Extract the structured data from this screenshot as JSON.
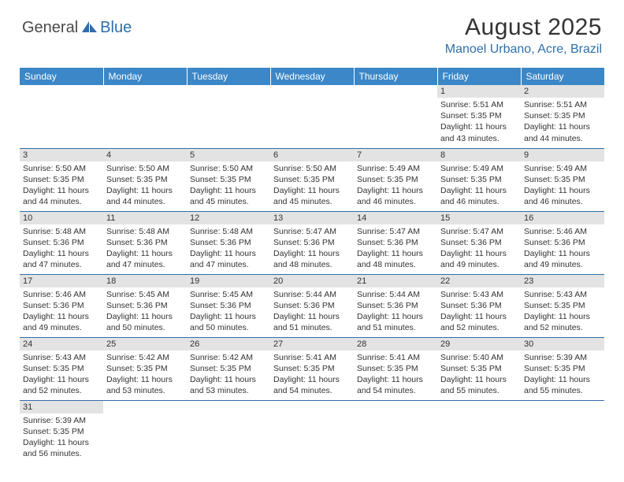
{
  "logo": {
    "text1": "General",
    "text2": "Blue"
  },
  "title": "August 2025",
  "location": "Manoel Urbano, Acre, Brazil",
  "colors": {
    "header_bg": "#3b87c8",
    "header_text": "#ffffff",
    "daynum_bg": "#e3e3e3",
    "border": "#2f6fa8",
    "location": "#2f6fa8",
    "body_text": "#333333"
  },
  "weekdays": [
    "Sunday",
    "Monday",
    "Tuesday",
    "Wednesday",
    "Thursday",
    "Friday",
    "Saturday"
  ],
  "leading_blanks": 5,
  "days": [
    {
      "n": 1,
      "sunrise": "5:51 AM",
      "sunset": "5:35 PM",
      "daylight": "11 hours and 43 minutes."
    },
    {
      "n": 2,
      "sunrise": "5:51 AM",
      "sunset": "5:35 PM",
      "daylight": "11 hours and 44 minutes."
    },
    {
      "n": 3,
      "sunrise": "5:50 AM",
      "sunset": "5:35 PM",
      "daylight": "11 hours and 44 minutes."
    },
    {
      "n": 4,
      "sunrise": "5:50 AM",
      "sunset": "5:35 PM",
      "daylight": "11 hours and 44 minutes."
    },
    {
      "n": 5,
      "sunrise": "5:50 AM",
      "sunset": "5:35 PM",
      "daylight": "11 hours and 45 minutes."
    },
    {
      "n": 6,
      "sunrise": "5:50 AM",
      "sunset": "5:35 PM",
      "daylight": "11 hours and 45 minutes."
    },
    {
      "n": 7,
      "sunrise": "5:49 AM",
      "sunset": "5:35 PM",
      "daylight": "11 hours and 46 minutes."
    },
    {
      "n": 8,
      "sunrise": "5:49 AM",
      "sunset": "5:35 PM",
      "daylight": "11 hours and 46 minutes."
    },
    {
      "n": 9,
      "sunrise": "5:49 AM",
      "sunset": "5:35 PM",
      "daylight": "11 hours and 46 minutes."
    },
    {
      "n": 10,
      "sunrise": "5:48 AM",
      "sunset": "5:36 PM",
      "daylight": "11 hours and 47 minutes."
    },
    {
      "n": 11,
      "sunrise": "5:48 AM",
      "sunset": "5:36 PM",
      "daylight": "11 hours and 47 minutes."
    },
    {
      "n": 12,
      "sunrise": "5:48 AM",
      "sunset": "5:36 PM",
      "daylight": "11 hours and 47 minutes."
    },
    {
      "n": 13,
      "sunrise": "5:47 AM",
      "sunset": "5:36 PM",
      "daylight": "11 hours and 48 minutes."
    },
    {
      "n": 14,
      "sunrise": "5:47 AM",
      "sunset": "5:36 PM",
      "daylight": "11 hours and 48 minutes."
    },
    {
      "n": 15,
      "sunrise": "5:47 AM",
      "sunset": "5:36 PM",
      "daylight": "11 hours and 49 minutes."
    },
    {
      "n": 16,
      "sunrise": "5:46 AM",
      "sunset": "5:36 PM",
      "daylight": "11 hours and 49 minutes."
    },
    {
      "n": 17,
      "sunrise": "5:46 AM",
      "sunset": "5:36 PM",
      "daylight": "11 hours and 49 minutes."
    },
    {
      "n": 18,
      "sunrise": "5:45 AM",
      "sunset": "5:36 PM",
      "daylight": "11 hours and 50 minutes."
    },
    {
      "n": 19,
      "sunrise": "5:45 AM",
      "sunset": "5:36 PM",
      "daylight": "11 hours and 50 minutes."
    },
    {
      "n": 20,
      "sunrise": "5:44 AM",
      "sunset": "5:36 PM",
      "daylight": "11 hours and 51 minutes."
    },
    {
      "n": 21,
      "sunrise": "5:44 AM",
      "sunset": "5:36 PM",
      "daylight": "11 hours and 51 minutes."
    },
    {
      "n": 22,
      "sunrise": "5:43 AM",
      "sunset": "5:36 PM",
      "daylight": "11 hours and 52 minutes."
    },
    {
      "n": 23,
      "sunrise": "5:43 AM",
      "sunset": "5:35 PM",
      "daylight": "11 hours and 52 minutes."
    },
    {
      "n": 24,
      "sunrise": "5:43 AM",
      "sunset": "5:35 PM",
      "daylight": "11 hours and 52 minutes."
    },
    {
      "n": 25,
      "sunrise": "5:42 AM",
      "sunset": "5:35 PM",
      "daylight": "11 hours and 53 minutes."
    },
    {
      "n": 26,
      "sunrise": "5:42 AM",
      "sunset": "5:35 PM",
      "daylight": "11 hours and 53 minutes."
    },
    {
      "n": 27,
      "sunrise": "5:41 AM",
      "sunset": "5:35 PM",
      "daylight": "11 hours and 54 minutes."
    },
    {
      "n": 28,
      "sunrise": "5:41 AM",
      "sunset": "5:35 PM",
      "daylight": "11 hours and 54 minutes."
    },
    {
      "n": 29,
      "sunrise": "5:40 AM",
      "sunset": "5:35 PM",
      "daylight": "11 hours and 55 minutes."
    },
    {
      "n": 30,
      "sunrise": "5:39 AM",
      "sunset": "5:35 PM",
      "daylight": "11 hours and 55 minutes."
    },
    {
      "n": 31,
      "sunrise": "5:39 AM",
      "sunset": "5:35 PM",
      "daylight": "11 hours and 56 minutes."
    }
  ],
  "labels": {
    "sunrise": "Sunrise:",
    "sunset": "Sunset:",
    "daylight": "Daylight:"
  }
}
